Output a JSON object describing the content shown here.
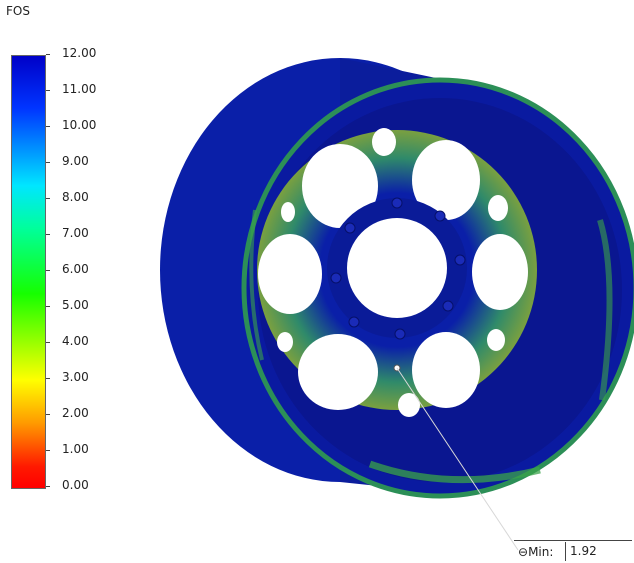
{
  "legend": {
    "title": "FOS",
    "max": 12,
    "min": 0,
    "ticks": [
      "12.00",
      "11.00",
      "10.00",
      "9.00",
      "8.00",
      "7.00",
      "6.00",
      "5.00",
      "4.00",
      "3.00",
      "2.00",
      "1.00",
      "0.00"
    ]
  },
  "probe": {
    "label": "Min:",
    "value": "1.92",
    "icon": "probe-marker-icon"
  },
  "colors": {
    "wheel_blue": "#0a1fa8",
    "wheel_dark": "#0a1880",
    "stress_green": "#3aa34a",
    "stress_yellow": "#c8b32a",
    "stress_orange": "#c0702a"
  }
}
